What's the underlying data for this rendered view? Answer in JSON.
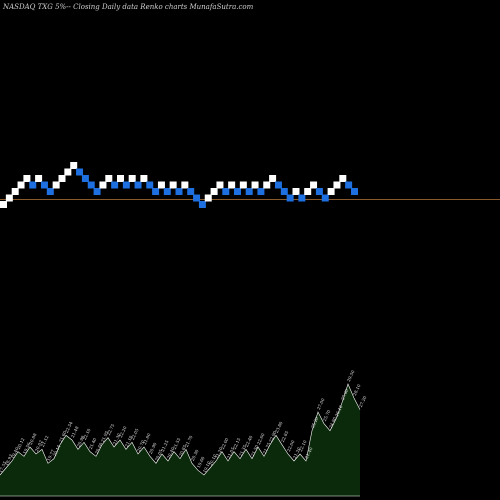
{
  "header": {
    "caption": "NASDAQ TXG 5%-- Closing Daily data Renko charts MunafaSutra.com"
  },
  "colors": {
    "background": "#000000",
    "up_brick": "#ffffff",
    "down_brick": "#1e6fe0",
    "baseline": "#8a5a2a",
    "volume_fill": "#0b2a0b",
    "volume_line": "#ffffff"
  },
  "chart_data": [
    {
      "type": "renko",
      "title": "NASDAQ TXG 5%-- Closing Daily data Renko charts MunafaSutra.com",
      "brick_size": "5%",
      "grid": false,
      "bricks": [
        {
          "dir": "up",
          "level": 0
        },
        {
          "dir": "up",
          "level": 1
        },
        {
          "dir": "up",
          "level": 2
        },
        {
          "dir": "up",
          "level": 3
        },
        {
          "dir": "up",
          "level": 4
        },
        {
          "dir": "down",
          "level": 3
        },
        {
          "dir": "up",
          "level": 4
        },
        {
          "dir": "down",
          "level": 3
        },
        {
          "dir": "down",
          "level": 2
        },
        {
          "dir": "up",
          "level": 3
        },
        {
          "dir": "up",
          "level": 4
        },
        {
          "dir": "up",
          "level": 5
        },
        {
          "dir": "up",
          "level": 6
        },
        {
          "dir": "down",
          "level": 5
        },
        {
          "dir": "down",
          "level": 4
        },
        {
          "dir": "down",
          "level": 3
        },
        {
          "dir": "down",
          "level": 2
        },
        {
          "dir": "up",
          "level": 3
        },
        {
          "dir": "up",
          "level": 4
        },
        {
          "dir": "down",
          "level": 3
        },
        {
          "dir": "up",
          "level": 4
        },
        {
          "dir": "down",
          "level": 3
        },
        {
          "dir": "up",
          "level": 4
        },
        {
          "dir": "down",
          "level": 3
        },
        {
          "dir": "up",
          "level": 4
        },
        {
          "dir": "down",
          "level": 3
        },
        {
          "dir": "down",
          "level": 2
        },
        {
          "dir": "up",
          "level": 3
        },
        {
          "dir": "down",
          "level": 2
        },
        {
          "dir": "up",
          "level": 3
        },
        {
          "dir": "down",
          "level": 2
        },
        {
          "dir": "up",
          "level": 3
        },
        {
          "dir": "down",
          "level": 2
        },
        {
          "dir": "down",
          "level": 1
        },
        {
          "dir": "down",
          "level": 0
        },
        {
          "dir": "up",
          "level": 1
        },
        {
          "dir": "up",
          "level": 2
        },
        {
          "dir": "up",
          "level": 3
        },
        {
          "dir": "down",
          "level": 2
        },
        {
          "dir": "up",
          "level": 3
        },
        {
          "dir": "down",
          "level": 2
        },
        {
          "dir": "up",
          "level": 3
        },
        {
          "dir": "down",
          "level": 2
        },
        {
          "dir": "up",
          "level": 3
        },
        {
          "dir": "down",
          "level": 2
        },
        {
          "dir": "up",
          "level": 3
        },
        {
          "dir": "up",
          "level": 4
        },
        {
          "dir": "down",
          "level": 3
        },
        {
          "dir": "down",
          "level": 2
        },
        {
          "dir": "down",
          "level": 1
        },
        {
          "dir": "up",
          "level": 2
        },
        {
          "dir": "down",
          "level": 1
        },
        {
          "dir": "up",
          "level": 2
        },
        {
          "dir": "up",
          "level": 3
        },
        {
          "dir": "down",
          "level": 2
        },
        {
          "dir": "down",
          "level": 1
        },
        {
          "dir": "up",
          "level": 2
        },
        {
          "dir": "up",
          "level": 3
        },
        {
          "dir": "up",
          "level": 4
        },
        {
          "dir": "down",
          "level": 3
        },
        {
          "dir": "down",
          "level": 2
        }
      ]
    },
    {
      "type": "area",
      "values": [
        {
          "label": "17.55",
          "v": 18
        },
        {
          "label": "18.93",
          "v": 24
        },
        {
          "label": "19.40",
          "v": 30
        },
        {
          "label": "20.12",
          "v": 38
        },
        {
          "label": "19.56",
          "v": 34
        },
        {
          "label": "20.88",
          "v": 42
        },
        {
          "label": "20.02",
          "v": 36
        },
        {
          "label": "21.12",
          "v": 40
        },
        {
          "label": "19.77",
          "v": 28
        },
        {
          "label": "20.14",
          "v": 32
        },
        {
          "label": "21.60",
          "v": 44
        },
        {
          "label": "22.54",
          "v": 52
        },
        {
          "label": "21.48",
          "v": 48
        },
        {
          "label": "20.98",
          "v": 40
        },
        {
          "label": "22.10",
          "v": 46
        },
        {
          "label": "21.40",
          "v": 38
        },
        {
          "label": "20.60",
          "v": 34
        },
        {
          "label": "21.95",
          "v": 44
        },
        {
          "label": "22.75",
          "v": 50
        },
        {
          "label": "21.30",
          "v": 42
        },
        {
          "label": "22.20",
          "v": 48
        },
        {
          "label": "21.10",
          "v": 40
        },
        {
          "label": "22.05",
          "v": 46
        },
        {
          "label": "20.70",
          "v": 36
        },
        {
          "label": "21.80",
          "v": 42
        },
        {
          "label": "20.90",
          "v": 34
        },
        {
          "label": "20.05",
          "v": 28
        },
        {
          "label": "21.25",
          "v": 36
        },
        {
          "label": "20.40",
          "v": 30
        },
        {
          "label": "21.55",
          "v": 38
        },
        {
          "label": "20.85",
          "v": 32
        },
        {
          "label": "21.70",
          "v": 40
        },
        {
          "label": "20.30",
          "v": 28
        },
        {
          "label": "19.60",
          "v": 22
        },
        {
          "label": "19.10",
          "v": 18
        },
        {
          "label": "20.10",
          "v": 24
        },
        {
          "label": "21.20",
          "v": 30
        },
        {
          "label": "22.00",
          "v": 38
        },
        {
          "label": "21.05",
          "v": 30
        },
        {
          "label": "22.15",
          "v": 38
        },
        {
          "label": "21.35",
          "v": 32
        },
        {
          "label": "22.40",
          "v": 40
        },
        {
          "label": "21.50",
          "v": 32
        },
        {
          "label": "22.60",
          "v": 42
        },
        {
          "label": "21.75",
          "v": 34
        },
        {
          "label": "22.90",
          "v": 44
        },
        {
          "label": "23.80",
          "v": 52
        },
        {
          "label": "22.85",
          "v": 44
        },
        {
          "label": "22.00",
          "v": 36
        },
        {
          "label": "21.20",
          "v": 30
        },
        {
          "label": "22.10",
          "v": 36
        },
        {
          "label": "21.40",
          "v": 30
        },
        {
          "label": "25.20",
          "v": 56
        },
        {
          "label": "27.00",
          "v": 72
        },
        {
          "label": "25.70",
          "v": 62
        },
        {
          "label": "24.80",
          "v": 56
        },
        {
          "label": "26.10",
          "v": 66
        },
        {
          "label": "27.60",
          "v": 80
        },
        {
          "label": "29.50",
          "v": 96
        },
        {
          "label": "28.10",
          "v": 84
        },
        {
          "label": "27.20",
          "v": 74
        }
      ]
    }
  ]
}
